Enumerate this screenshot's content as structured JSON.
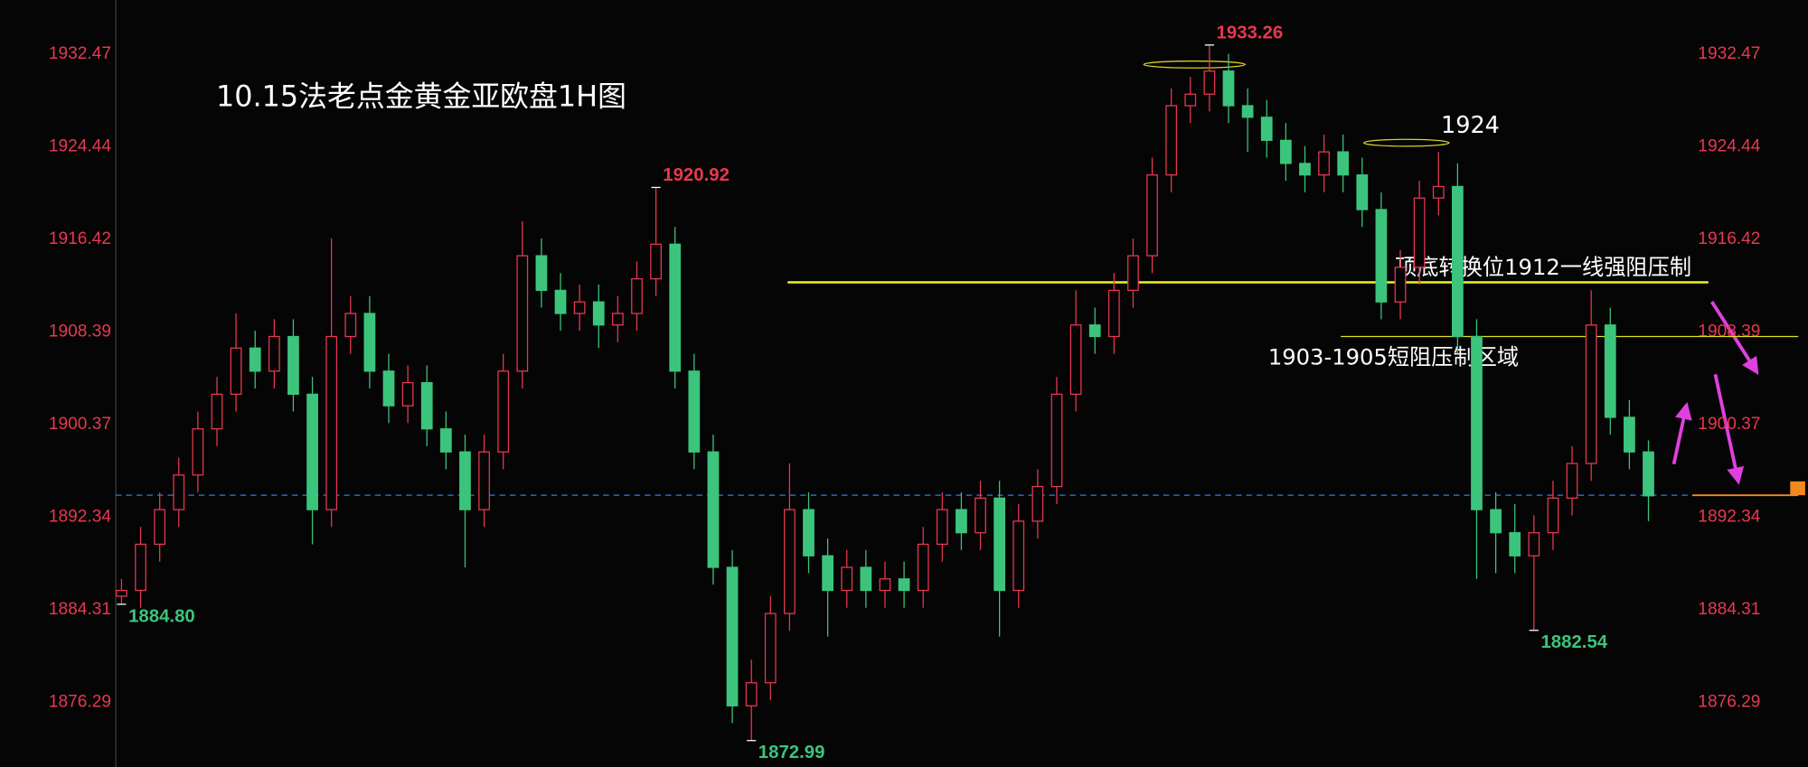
{
  "chart_data": {
    "type": "candlestick",
    "title": "10.15法老点金黄金亚欧盘1H图",
    "up_color": "#e8384f",
    "down_color": "#3cc47c",
    "open": [
      1885.5,
      1886,
      1890,
      1893,
      1896,
      1900,
      1903,
      1907,
      1905,
      1908,
      1903,
      1893,
      1908,
      1910,
      1905,
      1902,
      1904,
      1900,
      1898,
      1893,
      1898,
      1905,
      1915,
      1912,
      1910,
      1911,
      1909,
      1910,
      1913,
      1916,
      1905,
      1898,
      1888,
      1876,
      1878,
      1884,
      1893,
      1889,
      1886,
      1888,
      1886,
      1887,
      1886,
      1890,
      1893,
      1891,
      1894,
      1886,
      1892,
      1895,
      1903,
      1909,
      1908,
      1912,
      1915,
      1922,
      1928,
      1929,
      1931,
      1928,
      1927,
      1925,
      1923,
      1922,
      1924,
      1922,
      1919,
      1911,
      1914,
      1920,
      1921,
      1908,
      1893,
      1891,
      1889,
      1891,
      1894,
      1897,
      1909,
      1901,
      1898
    ],
    "high": [
      1887,
      1891.5,
      1894.5,
      1897.5,
      1901.5,
      1904.5,
      1910,
      1908.5,
      1909.5,
      1909.5,
      1904.5,
      1916.5,
      1911.5,
      1911.5,
      1906.5,
      1905.5,
      1905.5,
      1901.5,
      1899.5,
      1899.5,
      1906.5,
      1918,
      1916.5,
      1913.5,
      1912.5,
      1912.5,
      1911.5,
      1914.5,
      1920.92,
      1917.5,
      1906.5,
      1899.5,
      1889.5,
      1880,
      1885.5,
      1897,
      1894.5,
      1890.5,
      1889.5,
      1889.5,
      1888.5,
      1888.5,
      1891.5,
      1894.5,
      1894.5,
      1895.5,
      1895.5,
      1893.5,
      1896.5,
      1904.5,
      1912,
      1910.5,
      1913.5,
      1916.5,
      1923.5,
      1929.5,
      1930.5,
      1933.26,
      1932.5,
      1929.5,
      1928.5,
      1926.5,
      1924.5,
      1925.5,
      1925.5,
      1923.5,
      1920.5,
      1915.5,
      1921.5,
      1924,
      1923,
      1909.5,
      1894.5,
      1893.5,
      1892.5,
      1895.5,
      1898.5,
      1912,
      1910.5,
      1902.5,
      1899
    ],
    "low": [
      1884.8,
      1884.5,
      1888.5,
      1891.5,
      1894.5,
      1898.5,
      1901.5,
      1903.5,
      1903.5,
      1901.5,
      1890,
      1891.5,
      1906.5,
      1903.5,
      1900.5,
      1900.5,
      1898.5,
      1896.5,
      1888,
      1891.5,
      1896.5,
      1903.5,
      1910.5,
      1908.5,
      1908.5,
      1907,
      1907.5,
      1908.5,
      1911.5,
      1903.5,
      1896.5,
      1886.5,
      1874.5,
      1872.99,
      1876.5,
      1882.5,
      1887.5,
      1882,
      1884.5,
      1884.5,
      1884.5,
      1884.5,
      1884.5,
      1888.5,
      1889.5,
      1889.5,
      1882,
      1884.5,
      1890.5,
      1893.5,
      1901.5,
      1906.5,
      1906.5,
      1910.5,
      1913.5,
      1920.5,
      1926.5,
      1927.5,
      1926.5,
      1924,
      1923.5,
      1921.5,
      1920.5,
      1920.5,
      1920.5,
      1917.5,
      1909.5,
      1909.5,
      1912.5,
      1918.5,
      1906.5,
      1887,
      1887.5,
      1887.5,
      1882.54,
      1889.5,
      1892.5,
      1895.5,
      1899.5,
      1896.5,
      1892
    ],
    "close": [
      1886,
      1890,
      1893,
      1896,
      1900,
      1903,
      1907,
      1905,
      1908,
      1903,
      1893,
      1908,
      1910,
      1905,
      1902,
      1904,
      1900,
      1898,
      1893,
      1898,
      1905,
      1915,
      1912,
      1910,
      1911,
      1909,
      1910,
      1913,
      1916,
      1905,
      1898,
      1888,
      1876,
      1878,
      1884,
      1893,
      1889,
      1886,
      1888,
      1886,
      1887,
      1886,
      1890,
      1893,
      1891,
      1894,
      1886,
      1892,
      1895,
      1903,
      1909,
      1908,
      1912,
      1915,
      1922,
      1928,
      1929,
      1931,
      1928,
      1927,
      1925,
      1923,
      1922,
      1924,
      1922,
      1919,
      1911,
      1914,
      1920,
      1921,
      1908,
      1893,
      1891,
      1889,
      1891,
      1894,
      1897,
      1909,
      1901,
      1898,
      1894.2
    ],
    "high_value_labels": [
      null,
      null,
      null,
      null,
      null,
      null,
      null,
      null,
      null,
      null,
      null,
      null,
      null,
      null,
      null,
      null,
      null,
      null,
      null,
      null,
      null,
      null,
      null,
      null,
      null,
      null,
      null,
      null,
      "1920.92",
      null,
      null,
      null,
      null,
      null,
      null,
      null,
      null,
      null,
      null,
      null,
      null,
      null,
      null,
      null,
      null,
      null,
      null,
      null,
      null,
      null,
      null,
      null,
      null,
      null,
      null,
      null,
      null,
      "1933.26",
      null,
      null,
      null,
      null,
      null,
      null,
      null,
      null,
      null,
      null,
      null,
      null,
      null,
      null,
      null,
      null,
      null,
      null,
      null,
      null,
      null,
      null,
      null
    ],
    "low_value_labels": [
      "1884.80",
      null,
      null,
      null,
      null,
      null,
      null,
      null,
      null,
      null,
      null,
      null,
      null,
      null,
      null,
      null,
      null,
      null,
      null,
      null,
      null,
      null,
      null,
      null,
      null,
      null,
      null,
      null,
      null,
      null,
      null,
      null,
      null,
      "1872.99",
      null,
      null,
      null,
      null,
      null,
      null,
      null,
      null,
      null,
      null,
      null,
      null,
      null,
      null,
      null,
      null,
      null,
      null,
      null,
      null,
      null,
      null,
      null,
      null,
      null,
      null,
      null,
      null,
      null,
      null,
      null,
      null,
      null,
      null,
      null,
      null,
      null,
      null,
      null,
      null,
      "1882.54",
      null,
      null,
      null,
      null,
      null,
      null
    ],
    "ylim": [
      1870.7,
      1937.16
    ],
    "yticks": [
      1932.47,
      1924.44,
      1916.42,
      1908.39,
      1900.37,
      1892.34,
      1884.31,
      1876.29
    ],
    "levels": [
      {
        "value": 1912.7,
        "color": "#f0f020"
      },
      {
        "value": 1908.0,
        "color": "#e0e020"
      },
      {
        "value": 1894.25,
        "color": "#2f7fe0"
      }
    ],
    "annotations": [
      "1924",
      "顶底转换位1912一线强阻压制",
      "1903-1905短阻压制区域"
    ]
  }
}
